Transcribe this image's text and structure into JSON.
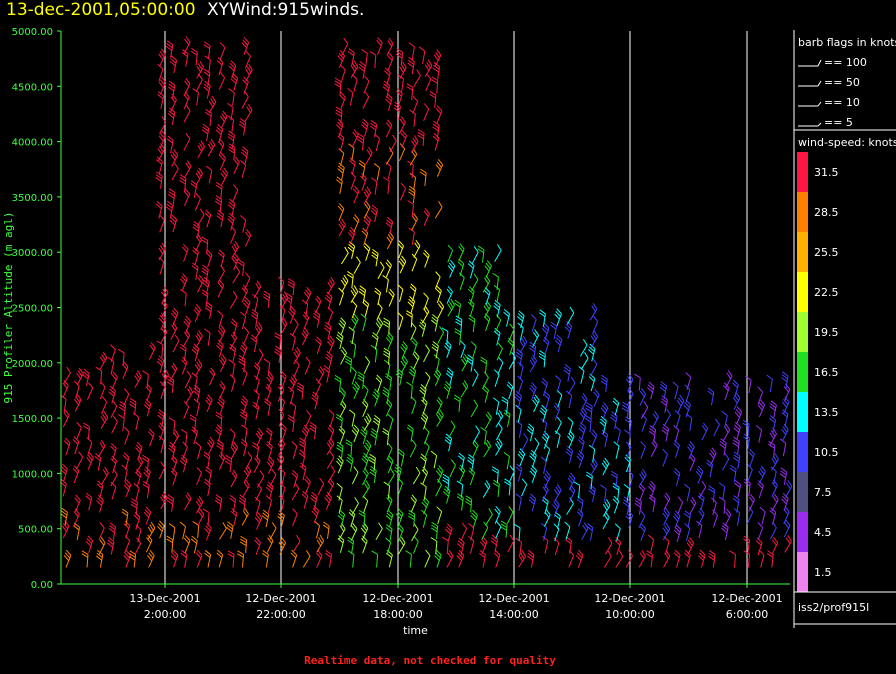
{
  "header": {
    "date_title": "13-dec-2001,05:00:00",
    "product_title": "XYWind:915winds."
  },
  "legend": {
    "flags_title": "barb flags in knots",
    "flags": [
      {
        "label": "== 100"
      },
      {
        "label": "== 50"
      },
      {
        "label": "== 10"
      },
      {
        "label": "== 5"
      }
    ],
    "colorbar_title": "wind-speed: knots",
    "colorbar": [
      {
        "value": "31.5",
        "color": "#ff1744"
      },
      {
        "value": "28.5",
        "color": "#ff8000"
      },
      {
        "value": "25.5",
        "color": "#ffb000"
      },
      {
        "value": "22.5",
        "color": "#ffff00"
      },
      {
        "value": "19.5",
        "color": "#a0ff30"
      },
      {
        "value": "16.5",
        "color": "#20e020"
      },
      {
        "value": "13.5",
        "color": "#00ffff"
      },
      {
        "value": "10.5",
        "color": "#4040ff"
      },
      {
        "value": "7.5",
        "color": "#505080"
      },
      {
        "value": "4.5",
        "color": "#9a2cf0"
      },
      {
        "value": "1.5",
        "color": "#ee82ee"
      }
    ],
    "station": "iss2/prof915l"
  },
  "footer": {
    "note": "Realtime data, not checked for quality"
  },
  "chart_data": {
    "type": "wind-barb time-height",
    "title": "XYWind:915winds.",
    "ylabel": "915 Profiler Altitude (m agl)",
    "xlabel": "time",
    "ylim": [
      0,
      5000
    ],
    "yticks": [
      "0.00",
      "500.00",
      "1000.00",
      "1500.00",
      "2000.00",
      "2500.00",
      "3000.00",
      "3500.00",
      "4000.00",
      "4500.00",
      "5000.00"
    ],
    "x_reversed": true,
    "xticks": [
      {
        "date": "13-Dec-2001",
        "time": "2:00:00"
      },
      {
        "date": "12-Dec-2001",
        "time": "22:00:00"
      },
      {
        "date": "12-Dec-2001",
        "time": "18:00:00"
      },
      {
        "date": "12-Dec-2001",
        "time": "14:00:00"
      },
      {
        "date": "12-Dec-2001",
        "time": "10:00:00"
      },
      {
        "date": "12-Dec-2001",
        "time": "6:00:00"
      }
    ],
    "grid_x": true,
    "axis_color": "#40ff40"
  }
}
